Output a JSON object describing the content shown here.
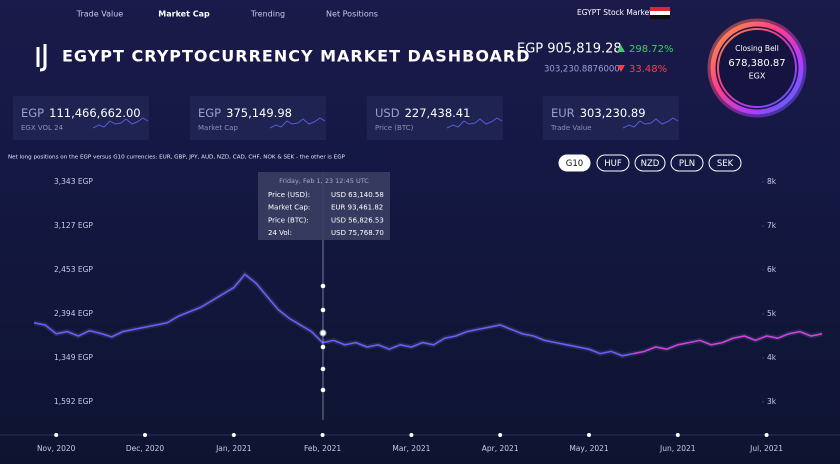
{
  "nav": [
    "Trade Value",
    "Market Cap",
    "Trending",
    "Net Positions"
  ],
  "market_label": "EGYPT Stock Market",
  "header": {
    "title": "EGYPT CRYPTOCURRENCY MARKET DASHBOARD",
    "price": "EGP 905,819.28",
    "change_up": "298.72%",
    "sub_price": "303,230.8876000",
    "change_down": "33.48%"
  },
  "closing_bell": {
    "label": "Closing Bell",
    "value": "678,380.87",
    "exchange": "EGX"
  },
  "cards": [
    {
      "currency": "EGP",
      "value": "111,466,662.00",
      "label": "EGX VOL 24"
    },
    {
      "currency": "EGP",
      "value": "375,149.98",
      "label": "Market Cap"
    },
    {
      "currency": "USD",
      "value": "227,438.41",
      "label": "Price (BTC)"
    },
    {
      "currency": "EUR",
      "value": "303,230.89",
      "label": "Trade Value"
    }
  ],
  "note": "Net long positions on the EGP versus G10 currencies: EUR, GBP, JPY, AUD, NZD, CAD, CHF, NOK & SEK - the other is EGP",
  "buttons": [
    "G10",
    "HUF",
    "NZD",
    "PLN",
    "SEK"
  ],
  "tooltip": {
    "title": "Friday, Feb 1, 23 12:45 UTC",
    "rows": [
      [
        "Price (USD):",
        "USD 63,140.58"
      ],
      [
        "Market Cap:",
        "EUR 93,461.82"
      ],
      [
        "Price (BTC):",
        "USD 56,826.53"
      ],
      [
        "24 Vol:",
        "USD 75,768.70"
      ]
    ]
  },
  "chart_data": {
    "type": "line",
    "left_axis_labels": [
      "3,343 EGP",
      "3,127 EGP",
      "2,453 EGP",
      "2,394 EGP",
      "1,349 EGP",
      "1,592 EGP"
    ],
    "categories": [
      null,
      null,
      "Nov, 2020",
      null,
      null,
      null,
      null,
      null,
      null,
      null,
      "Dec, 2020",
      null,
      null,
      null,
      null,
      null,
      null,
      null,
      "Jan, 2021",
      null,
      null,
      null,
      null,
      null,
      null,
      null,
      "Feb, 2021",
      null,
      null,
      null,
      null,
      null,
      null,
      null,
      "Mar, 2021",
      null,
      null,
      null,
      null,
      null,
      null,
      null,
      "Apr, 2021",
      null,
      null,
      null,
      null,
      null,
      null,
      null,
      "May, 2021",
      null,
      null,
      null,
      null,
      null,
      null,
      null,
      "Jun, 2021",
      null,
      null,
      null,
      null,
      null,
      null,
      null,
      "Jul, 2021",
      null,
      null,
      null,
      null,
      null
    ],
    "series": [
      {
        "color": "#6b5cff",
        "values": [
          4800,
          4750,
          4550,
          4600,
          4500,
          4620,
          4560,
          4480,
          4600,
          4650,
          4700,
          4750,
          4800,
          4950,
          5050,
          5150,
          5300,
          5450,
          5600,
          5900,
          5700,
          5400,
          5100,
          4900,
          4750,
          4600,
          4350,
          4400,
          4300,
          4350,
          4250,
          4300,
          4200,
          4300,
          4250,
          4350,
          4300,
          4450,
          4500,
          4600,
          4650,
          4700,
          4750,
          4650,
          4550,
          4500,
          4400,
          4350,
          4300,
          4250,
          4200,
          4100,
          4150,
          4050,
          4100,
          null,
          null,
          null,
          null,
          null,
          null,
          null,
          null,
          null,
          null,
          null,
          null,
          null,
          null,
          null,
          null,
          null
        ]
      },
      {
        "color": "#d23fe0",
        "values": [
          null,
          null,
          null,
          null,
          null,
          null,
          null,
          null,
          null,
          null,
          null,
          null,
          null,
          null,
          null,
          null,
          null,
          null,
          null,
          null,
          null,
          null,
          null,
          null,
          null,
          null,
          null,
          null,
          null,
          null,
          null,
          null,
          null,
          null,
          null,
          null,
          null,
          null,
          null,
          null,
          null,
          null,
          null,
          null,
          null,
          null,
          null,
          null,
          null,
          null,
          null,
          null,
          null,
          null,
          4100,
          4150,
          4250,
          4200,
          4300,
          4350,
          4400,
          4300,
          4350,
          4450,
          4500,
          4400,
          4500,
          4450,
          4550,
          4600,
          4500,
          4550
        ]
      }
    ],
    "ylim": [
      2250,
      8250
    ],
    "yticks": [
      {
        "value": 8000,
        "label": "8k"
      },
      {
        "value": 7000,
        "label": "7k"
      },
      {
        "value": 6000,
        "label": "6k"
      },
      {
        "value": 5000,
        "label": "5k"
      },
      {
        "value": 4000,
        "label": "4k"
      },
      {
        "value": 3000,
        "label": "3k"
      }
    ]
  }
}
